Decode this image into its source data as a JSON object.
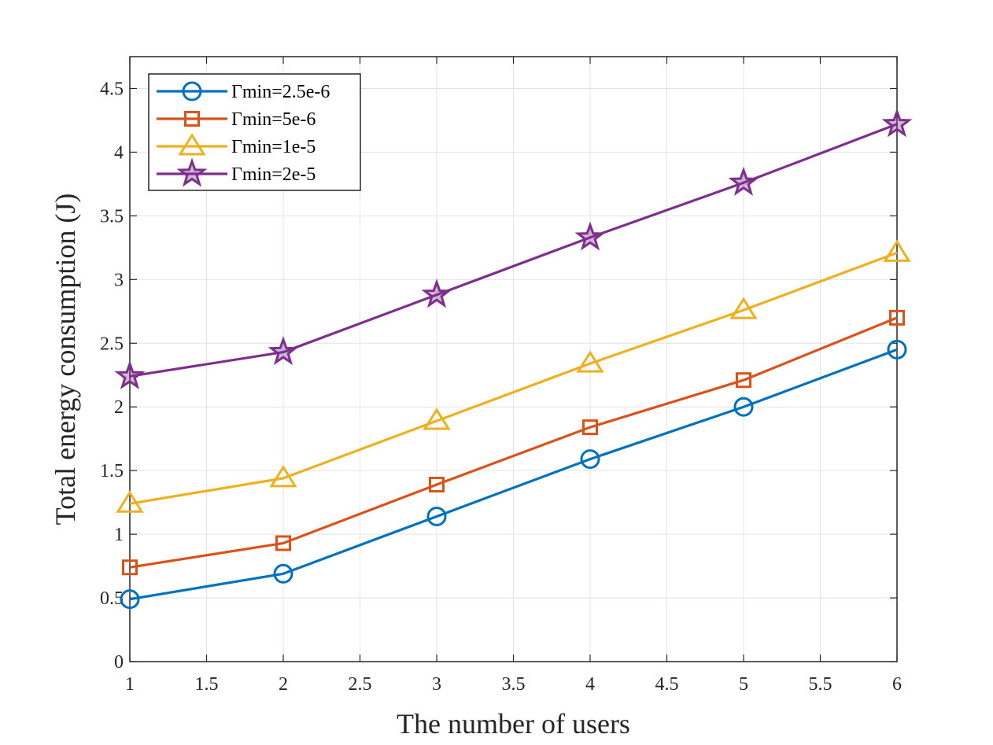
{
  "chart_data": {
    "type": "line",
    "title": "",
    "xlabel": "The number of users",
    "ylabel": "Total energy consumption (J)",
    "xlim": [
      1,
      6
    ],
    "ylim": [
      0,
      4.75
    ],
    "xticks": [
      1,
      1.5,
      2,
      2.5,
      3,
      3.5,
      4,
      4.5,
      5,
      5.5,
      6
    ],
    "xtick_labels": [
      "1",
      "1.5",
      "2",
      "2.5",
      "3",
      "3.5",
      "4",
      "4.5",
      "5",
      "5.5",
      "6"
    ],
    "yticks": [
      0,
      0.5,
      1,
      1.5,
      2,
      2.5,
      3,
      3.5,
      4,
      4.5
    ],
    "ytick_labels": [
      "0",
      "0.5",
      "1",
      "1.5",
      "2",
      "2.5",
      "3",
      "3.5",
      "4",
      "4.5"
    ],
    "grid": true,
    "legend_position": "top-left",
    "x": [
      1,
      2,
      3,
      4,
      5,
      6
    ],
    "series": [
      {
        "name": "Γmin=2.5e-6",
        "color": "#0072BD",
        "marker": "circle",
        "values": [
          0.49,
          0.69,
          1.14,
          1.59,
          2.0,
          2.45
        ]
      },
      {
        "name": "Γmin=5e-6",
        "color": "#D95319",
        "marker": "square",
        "values": [
          0.74,
          0.93,
          1.39,
          1.84,
          2.21,
          2.7
        ]
      },
      {
        "name": "Γmin=1e-5",
        "color": "#EDB120",
        "marker": "triangle",
        "values": [
          1.24,
          1.44,
          1.89,
          2.34,
          2.76,
          3.21
        ]
      },
      {
        "name": "Γmin=2e-5",
        "color": "#7E2F8E",
        "marker": "star",
        "values": [
          2.24,
          2.43,
          2.88,
          3.33,
          3.76,
          4.22
        ]
      }
    ]
  }
}
